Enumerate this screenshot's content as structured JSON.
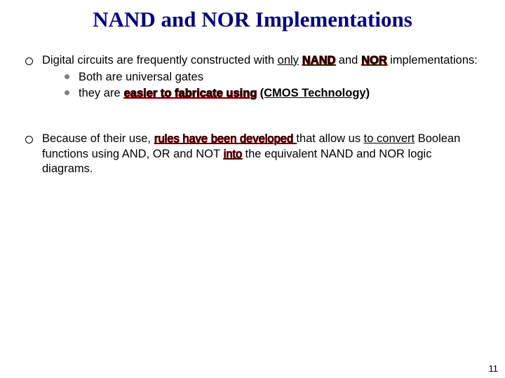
{
  "title": "NAND and NOR Implementations",
  "title_color": "#000080",
  "title_fontfamily": "Comic Sans MS",
  "title_fontsize": 31,
  "background_color": "#ffffff",
  "body_fontsize": 16.5,
  "bullets": [
    {
      "pre1": "Digital circuits are frequently constructed with ",
      "only": "only",
      "space1": " ",
      "nand": "NAND",
      "and_word": " and ",
      "nor": "NOR",
      "post1": " implementations:",
      "sub": [
        {
          "text": "Both are universal gates"
        },
        {
          "pre": "they are ",
          "easier": "easier to fabricate using",
          "space": " ",
          "cmos": "(CMOS Technology)"
        }
      ]
    },
    {
      "pre2": "Because of their use, ",
      "rules": "rules have been developed ",
      "mid2a": "that allow us ",
      "toconvert": "to convert",
      "mid2b": " Boolean functions using AND, OR and NOT ",
      "into": "into",
      "post2": " the equivalent NAND and NOR logic diagrams."
    }
  ],
  "pagenum": "11"
}
